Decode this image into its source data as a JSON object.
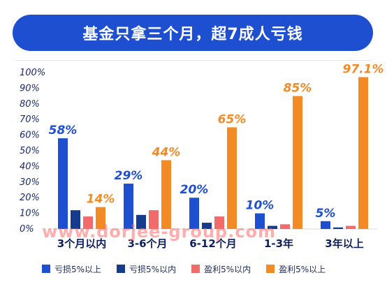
{
  "header": {
    "title": "基金只拿三个月，超7成人亏钱"
  },
  "watermark": "www.dorjee-group.com",
  "chart_data": {
    "type": "bar",
    "categories": [
      "3个月以内",
      "3-6个月",
      "6-12个月",
      "1-3年",
      "3年以上"
    ],
    "ylim": [
      0,
      100
    ],
    "yticks": [
      "0%",
      "10%",
      "20%",
      "30%",
      "40%",
      "50%",
      "60%",
      "70%",
      "80%",
      "90%",
      "100%"
    ],
    "series": [
      {
        "name": "亏损5%以上",
        "color": "#1f4fd1",
        "values": [
          58,
          29,
          20,
          10,
          5
        ]
      },
      {
        "name": "亏损5%以内",
        "color": "#163a8c",
        "values": [
          12,
          9,
          4,
          2,
          1
        ]
      },
      {
        "name": "盈利5%以内",
        "color": "#f26b6b",
        "values": [
          8,
          12,
          8,
          3,
          2
        ]
      },
      {
        "name": "盈利5%以上",
        "color": "#f28a26",
        "values": [
          14,
          44,
          65,
          85,
          97.1
        ]
      }
    ],
    "data_labels": [
      {
        "category": "3个月以内",
        "series": "亏损5%以上",
        "text": "58%"
      },
      {
        "category": "3个月以内",
        "series": "盈利5%以上",
        "text": "14%"
      },
      {
        "category": "3-6个月",
        "series": "亏损5%以上",
        "text": "29%"
      },
      {
        "category": "3-6个月",
        "series": "盈利5%以上",
        "text": "44%"
      },
      {
        "category": "6-12个月",
        "series": "亏损5%以上",
        "text": "20%"
      },
      {
        "category": "6-12个月",
        "series": "盈利5%以上",
        "text": "65%"
      },
      {
        "category": "1-3年",
        "series": "亏损5%以上",
        "text": "10%"
      },
      {
        "category": "1-3年",
        "series": "盈利5%以上",
        "text": "85%"
      },
      {
        "category": "3年以上",
        "series": "亏损5%以上",
        "text": "5%"
      },
      {
        "category": "3年以上",
        "series": "盈利5%以上",
        "text": "97.1%"
      }
    ],
    "legend_position": "bottom",
    "grid": false
  }
}
